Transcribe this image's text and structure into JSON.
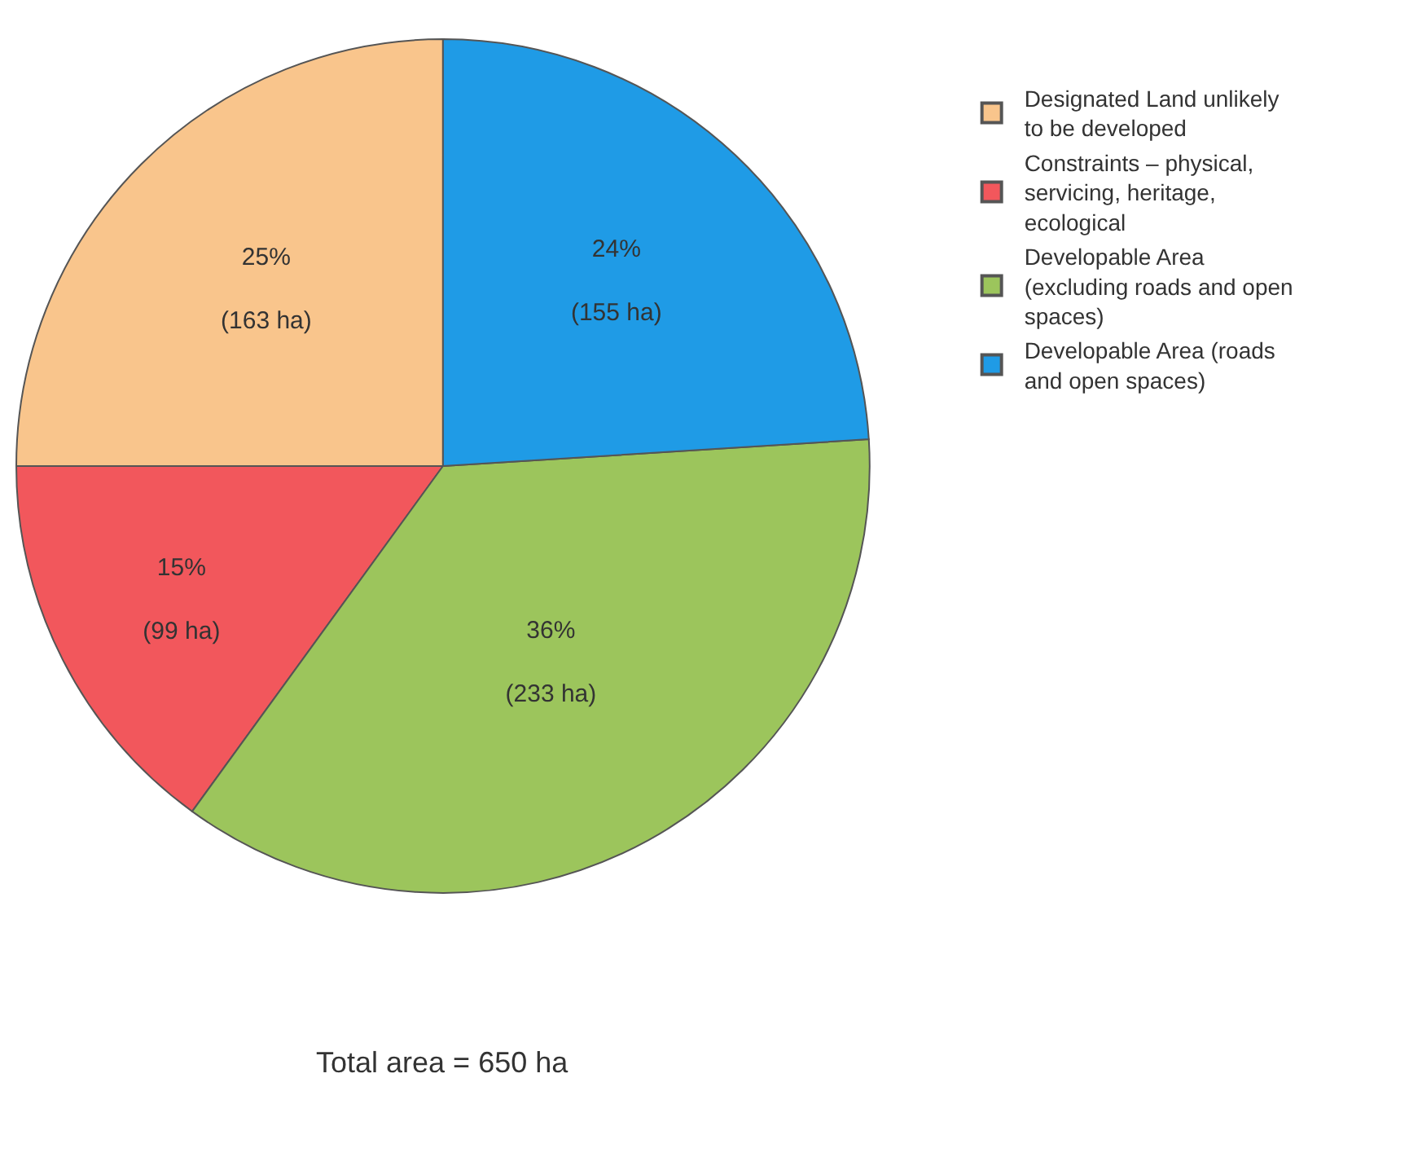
{
  "chart_data": {
    "type": "pie",
    "categories": [
      "Designated Land unlikely to be developed",
      "Constraints – physical, servicing, heritage, ecological",
      "Developable Area (excluding roads and open spaces)",
      "Developable Area (roads and open spaces)"
    ],
    "values": [
      25,
      15,
      36,
      24
    ],
    "value_labels": [
      "25%\n(163 ha)",
      "15%\n(99 ha)",
      "36%\n(233 ha)",
      "24%\n(155 ha)"
    ],
    "colors": [
      "#f9c58c",
      "#f2575c",
      "#9cc55c",
      "#1f9be6"
    ],
    "legend": "right",
    "annotations": [
      "Total area = 650 ha"
    ]
  }
}
